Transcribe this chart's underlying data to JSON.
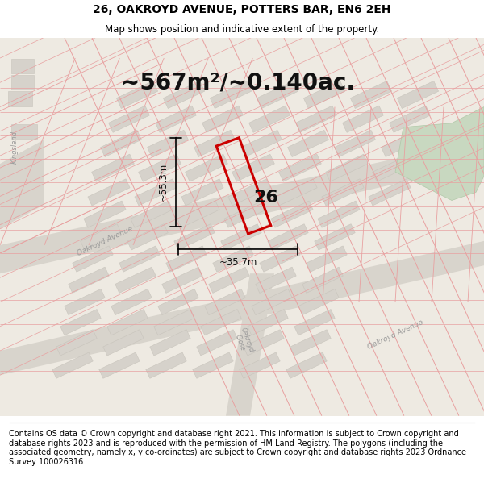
{
  "title": "26, OAKROYD AVENUE, POTTERS BAR, EN6 2EH",
  "subtitle": "Map shows position and indicative extent of the property.",
  "area_text": "~567m²/~0.140ac.",
  "dim_height": "~55.3m",
  "dim_width": "~35.7m",
  "number_label": "26",
  "footer": "Contains OS data © Crown copyright and database right 2021. This information is subject to Crown copyright and database rights 2023 and is reproduced with the permission of HM Land Registry. The polygons (including the associated geometry, namely x, y co-ordinates) are subject to Crown copyright and database rights 2023 Ordnance Survey 100026316.",
  "map_bg": "#eeeae2",
  "plot_outline_color": "#cc0000",
  "building_fill": "#d6d2cb",
  "building_edge": "#c8c4bc",
  "road_fill": "#d8d4cc",
  "green_fill": "#c8d8c0",
  "pink_line": "#e8a0a0",
  "gray_line": "#c8c0b8",
  "title_fontsize": 10,
  "subtitle_fontsize": 8.5,
  "area_fontsize": 20,
  "footer_fontsize": 7,
  "label_color": "#999999",
  "text_color": "#111111"
}
